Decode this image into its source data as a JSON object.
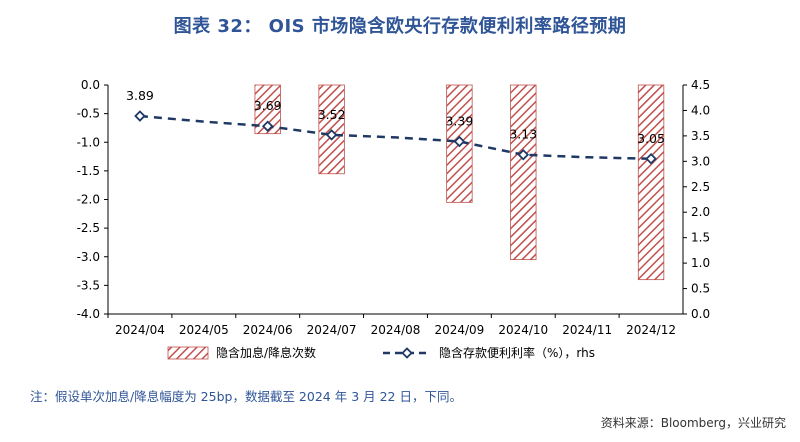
{
  "figure": {
    "title": "图表 32：  OIS 市场隐含欧央行存款便利利率路径预期",
    "note": "注：假设单次加息/降息幅度为 25bp，数据截至 2024 年 3 月 22 日，下同。",
    "source": "资料来源：Bloomberg，兴业研究"
  },
  "colors": {
    "title": "#2f5597",
    "bar_hatch": "#c0504d",
    "line": "#1f3864",
    "axis": "#000000"
  },
  "chart_data": {
    "type": "bar",
    "categories": [
      "2024/04",
      "2024/05",
      "2024/06",
      "2024/07",
      "2024/08",
      "2024/09",
      "2024/10",
      "2024/11",
      "2024/12"
    ],
    "series": [
      {
        "name": "隐含加息/降息次数",
        "type": "bar",
        "axis": "left",
        "pattern": "diagonal-hatch",
        "values": [
          0,
          0,
          -0.85,
          -1.55,
          0,
          -2.05,
          -3.05,
          0,
          -3.4
        ]
      },
      {
        "name": "隐含存款便利利率（%），rhs",
        "type": "line",
        "axis": "right",
        "style": "dashed-with-diamond-markers",
        "values": [
          3.89,
          null,
          3.69,
          3.52,
          null,
          3.39,
          3.13,
          null,
          3.05
        ],
        "line_values": [
          3.89,
          3.78,
          3.69,
          3.52,
          3.47,
          3.39,
          3.13,
          3.08,
          3.05
        ],
        "data_labels": [
          "3.89",
          "",
          "3.69",
          "3.52",
          "",
          "3.39",
          "3.13",
          "",
          "3.05"
        ]
      }
    ],
    "left_axis": {
      "ylim": [
        -4.0,
        0.0
      ],
      "ticks": [
        "0.0",
        "-0.5",
        "-1.0",
        "-1.5",
        "-2.0",
        "-2.5",
        "-3.0",
        "-3.5",
        "-4.0"
      ]
    },
    "right_axis": {
      "ylim": [
        0.0,
        4.5
      ],
      "ticks": [
        "4.5",
        "4.0",
        "3.5",
        "3.0",
        "2.5",
        "2.0",
        "1.5",
        "1.0",
        "0.5",
        "0.0"
      ]
    },
    "legend": {
      "position": "bottom",
      "items": [
        "隐含加息/降息次数",
        "隐含存款便利利率（%），rhs"
      ]
    },
    "grid": false
  }
}
